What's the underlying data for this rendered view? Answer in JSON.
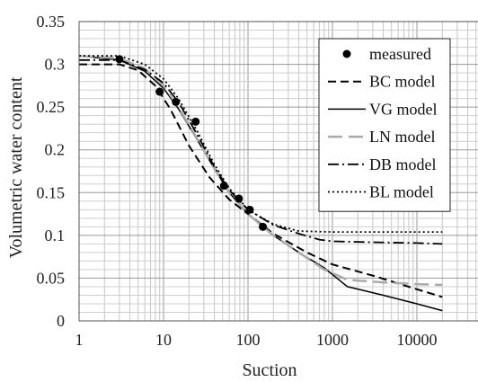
{
  "chart_data": {
    "type": "line",
    "xlabel": "Suction",
    "ylabel": "Volumetric water content",
    "x_scale": "log",
    "xlim": [
      1,
      100000
    ],
    "ylim": [
      0,
      0.35
    ],
    "x_ticks": [
      "1",
      "10",
      "100",
      "1000",
      "10000"
    ],
    "y_ticks": [
      "0",
      "0.05",
      "0.1",
      "0.15",
      "0.2",
      "0.25",
      "0.3",
      "0.35"
    ],
    "grid": true,
    "legend_position": "top-right",
    "series": [
      {
        "name": "measured",
        "style": "marker",
        "color": "#000000",
        "x": [
          3,
          9,
          14,
          24,
          52,
          78,
          105,
          150
        ],
        "y": [
          0.306,
          0.268,
          0.256,
          0.233,
          0.158,
          0.143,
          0.13,
          0.11
        ]
      },
      {
        "name": "BC model",
        "style": "dashed",
        "color": "#000000",
        "x": [
          1,
          3,
          5,
          8,
          12,
          20,
          35,
          60,
          100,
          200,
          500,
          1000,
          3000,
          10000,
          20000
        ],
        "y": [
          0.3,
          0.3,
          0.293,
          0.275,
          0.248,
          0.205,
          0.168,
          0.142,
          0.125,
          0.102,
          0.08,
          0.066,
          0.053,
          0.037,
          0.028
        ]
      },
      {
        "name": "VG model",
        "style": "solid",
        "color": "#000000",
        "x": [
          1,
          3,
          6,
          10,
          15,
          25,
          40,
          60,
          100,
          200,
          400,
          800,
          1500,
          4000,
          10000,
          20000
        ],
        "y": [
          0.31,
          0.305,
          0.292,
          0.272,
          0.248,
          0.212,
          0.178,
          0.15,
          0.125,
          0.1,
          0.08,
          0.062,
          0.04,
          0.03,
          0.02,
          0.012
        ]
      },
      {
        "name": "LN model",
        "style": "long-dashed",
        "color": "#aaaaaa",
        "x": [
          1,
          3,
          6,
          10,
          15,
          25,
          40,
          60,
          100,
          200,
          400,
          800,
          1500,
          4000,
          10000,
          20000
        ],
        "y": [
          0.31,
          0.307,
          0.295,
          0.275,
          0.25,
          0.213,
          0.178,
          0.15,
          0.125,
          0.1,
          0.08,
          0.06,
          0.048,
          0.045,
          0.043,
          0.042
        ]
      },
      {
        "name": "DB model",
        "style": "dash-dot",
        "color": "#000000",
        "x": [
          1,
          3,
          6,
          10,
          15,
          25,
          40,
          60,
          100,
          200,
          400,
          700,
          1000,
          3000,
          10000,
          20000
        ],
        "y": [
          0.305,
          0.305,
          0.294,
          0.278,
          0.256,
          0.218,
          0.18,
          0.153,
          0.13,
          0.112,
          0.102,
          0.095,
          0.093,
          0.092,
          0.091,
          0.09
        ]
      },
      {
        "name": "BL model",
        "style": "dotted",
        "color": "#000000",
        "x": [
          1,
          3,
          6,
          10,
          15,
          25,
          40,
          60,
          100,
          200,
          400,
          1000,
          3000,
          10000,
          20000
        ],
        "y": [
          0.31,
          0.31,
          0.3,
          0.283,
          0.26,
          0.222,
          0.183,
          0.155,
          0.13,
          0.113,
          0.105,
          0.104,
          0.104,
          0.104,
          0.104
        ]
      }
    ]
  }
}
